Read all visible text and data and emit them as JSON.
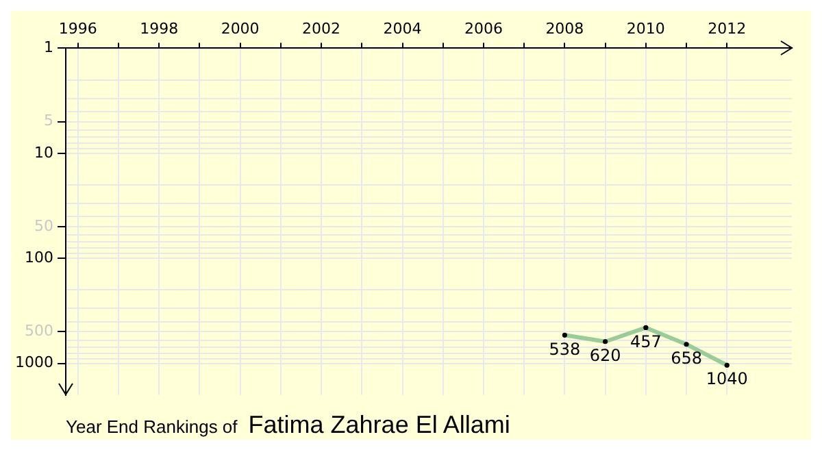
{
  "chart_data": {
    "type": "line",
    "title": "Year End Rankings of",
    "subtitle": "Fatima Zahrae El Allami",
    "x": [
      2008,
      2009,
      2010,
      2011,
      2012
    ],
    "series": [
      {
        "color": "#99cc99",
        "values": [
          538,
          620,
          457,
          658,
          1040
        ]
      }
    ],
    "xlim": [
      1995.7,
      2013.6
    ],
    "xticks": [
      1996,
      {
        "value": 1997,
        "label": null
      },
      1998,
      {
        "value": 1999,
        "label": null
      },
      2000,
      {
        "value": 2001,
        "label": null
      },
      2002,
      {
        "value": 2003,
        "label": null
      },
      2004,
      {
        "value": 2005,
        "label": null
      },
      2006,
      {
        "value": 2007,
        "label": null
      },
      2008,
      {
        "value": 2009,
        "label": null
      },
      2010,
      {
        "value": 2011,
        "label": null
      },
      2012
    ],
    "ylim": [
      2000,
      1
    ],
    "yticks": [
      1,
      {
        "value": 2,
        "label": null
      },
      {
        "value": 3,
        "label": null
      },
      {
        "value": 4,
        "label": null
      },
      5,
      {
        "value": 6,
        "label": null
      },
      {
        "value": 7,
        "label": null
      },
      {
        "value": 8,
        "label": null
      },
      {
        "value": 9,
        "label": null
      },
      10,
      {
        "value": 20,
        "label": null
      },
      {
        "value": 30,
        "label": null
      },
      {
        "value": 40,
        "label": null
      },
      50,
      {
        "value": 60,
        "label": null
      },
      {
        "value": 70,
        "label": null
      },
      {
        "value": 80,
        "label": null
      },
      {
        "value": 90,
        "label": null
      },
      100,
      {
        "value": 200,
        "label": null
      },
      {
        "value": 300,
        "label": null
      },
      {
        "value": 400,
        "label": null
      },
      500,
      {
        "value": 600,
        "label": null
      },
      {
        "value": 700,
        "label": null
      },
      {
        "value": 800,
        "label": null
      },
      {
        "value": 900,
        "label": null
      },
      1000
    ],
    "log": "y",
    "grid": true,
    "marker": "circle",
    "line_style": "solid",
    "data_labels": true,
    "legend": false
  }
}
